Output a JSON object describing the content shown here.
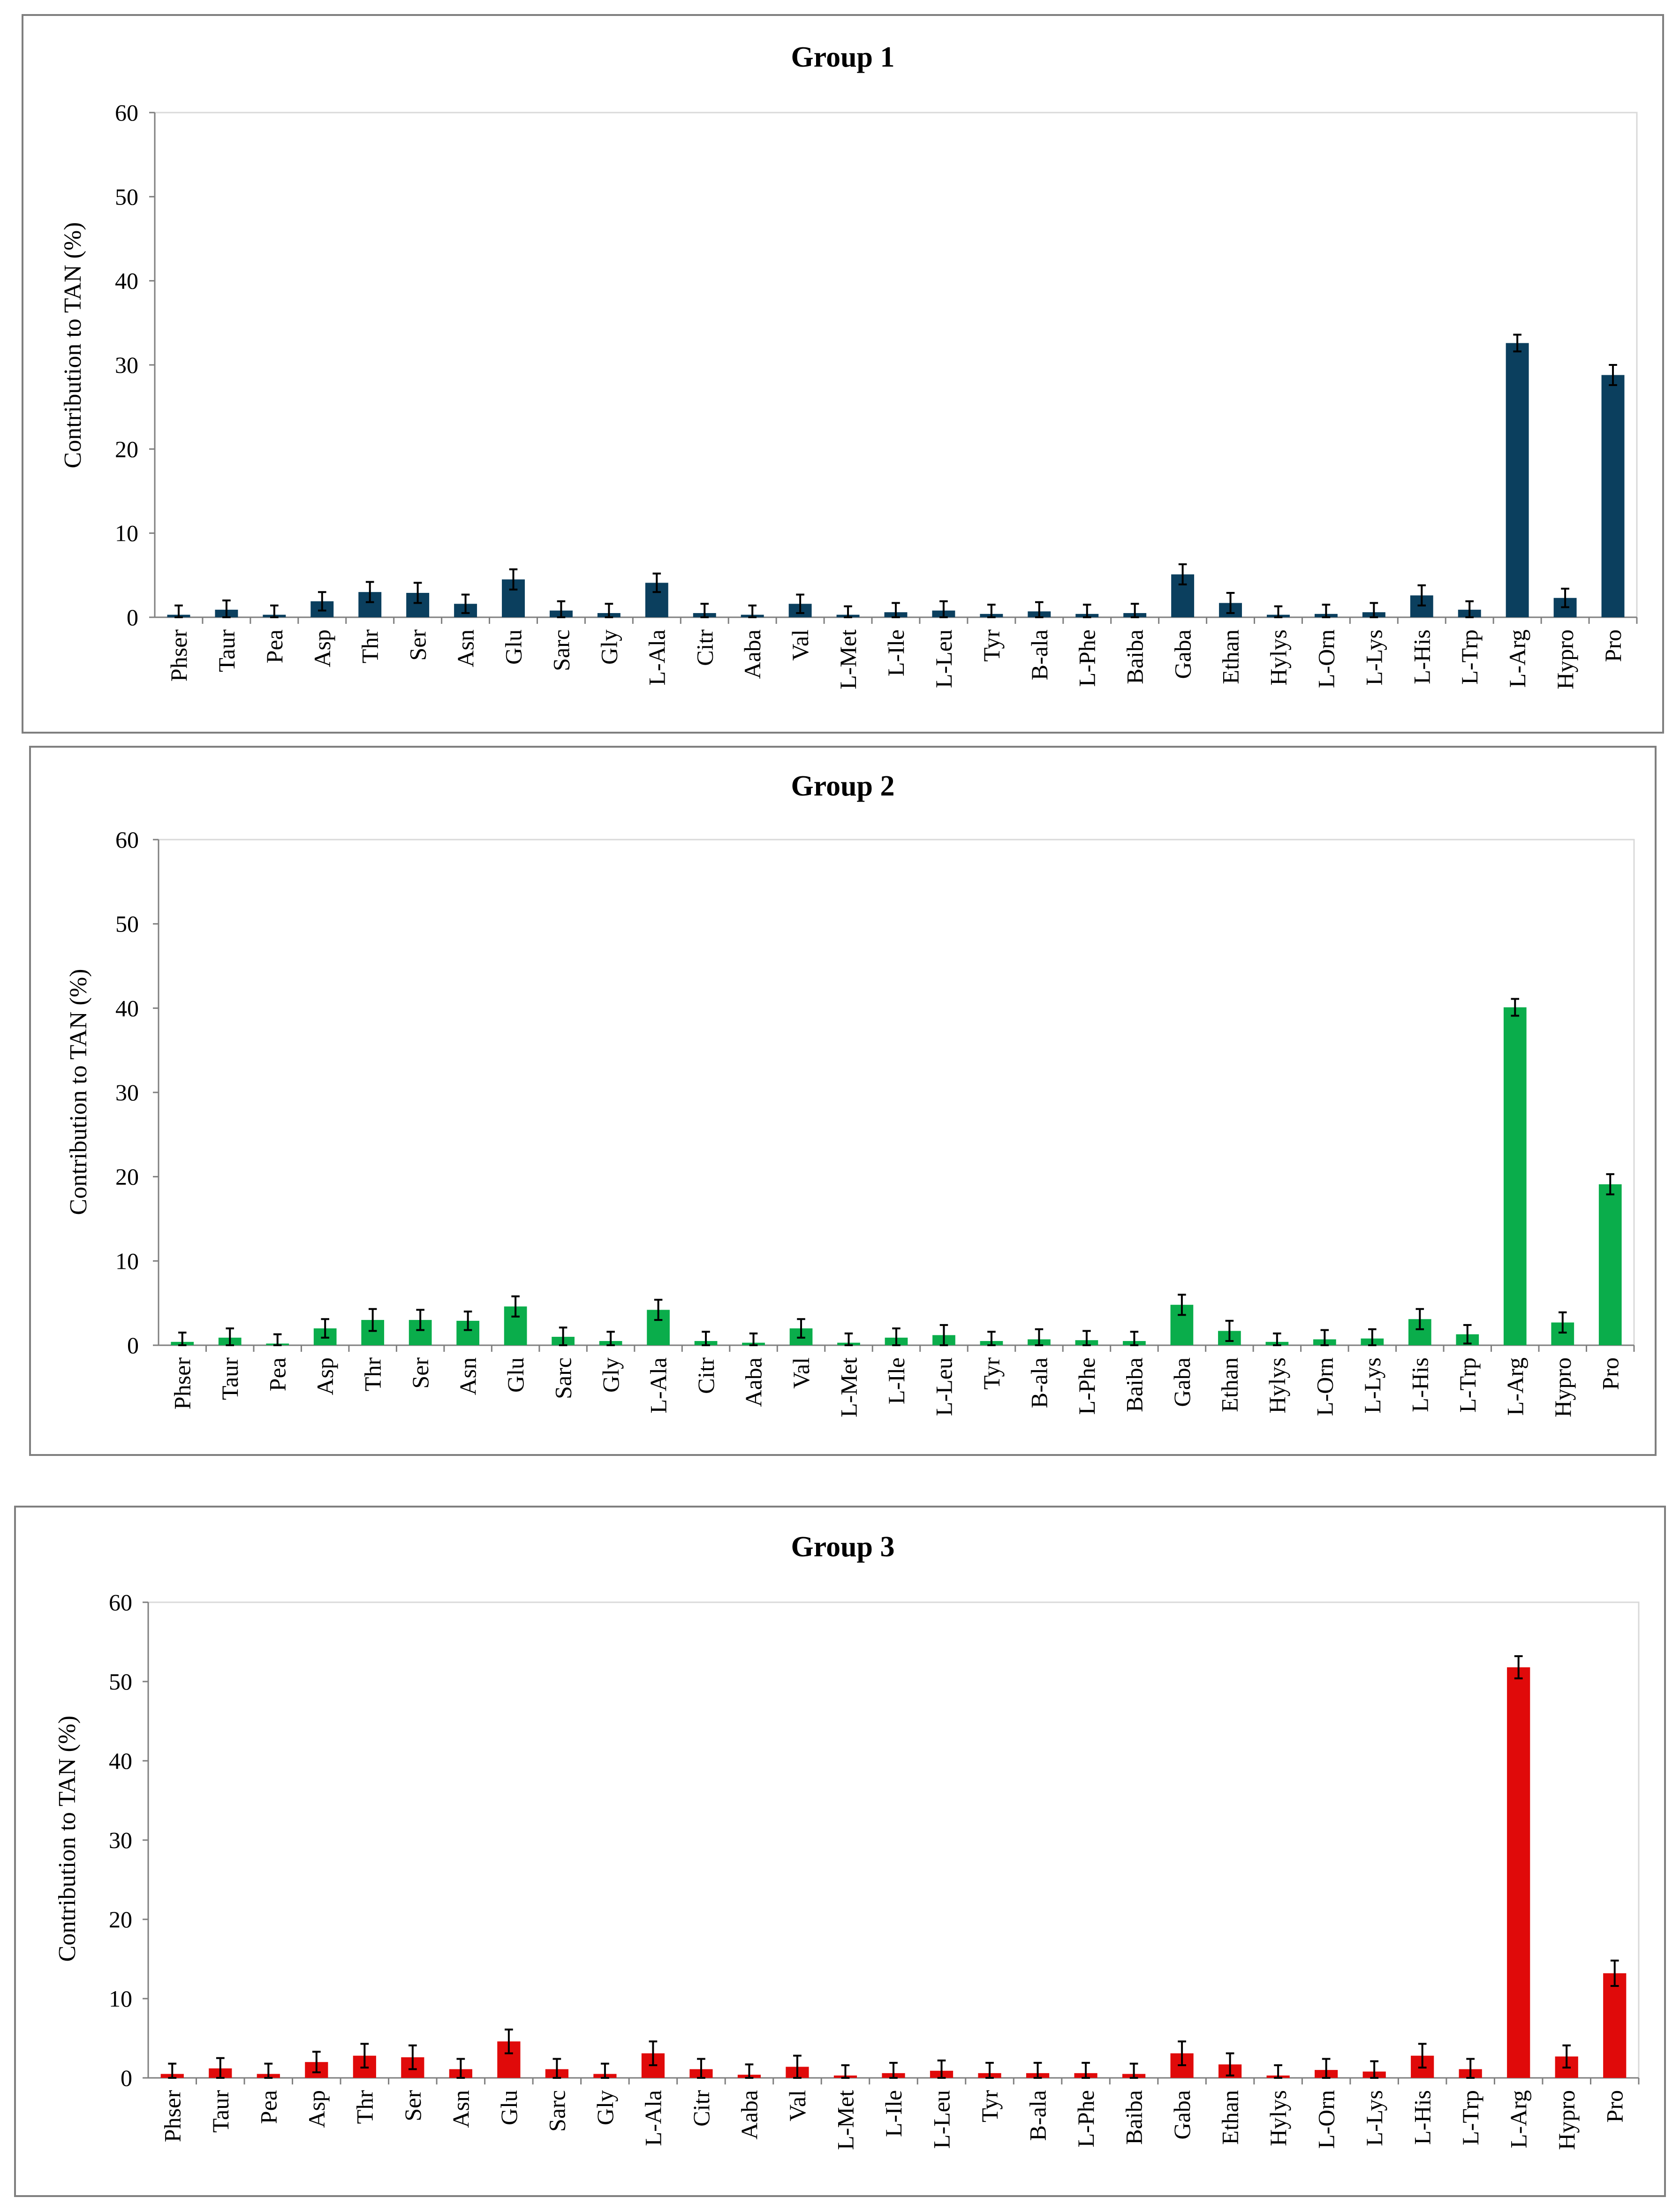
{
  "chart_data": [
    {
      "type": "bar",
      "title": "Group 1",
      "ylabel": "Contribution to TAN (%)",
      "xlabel": "",
      "ylim": [
        0,
        60
      ],
      "yticks": [
        0,
        10,
        20,
        30,
        40,
        50,
        60
      ],
      "grid": false,
      "color": "#0b3f5e",
      "categories": [
        "Phser",
        "Taur",
        "Pea",
        "Asp",
        "Thr",
        "Ser",
        "Asn",
        "Glu",
        "Sarc",
        "Gly",
        "L-Ala",
        "Citr",
        "Aaba",
        "Val",
        "L-Met",
        "L-Ile",
        "L-Leu",
        "Tyr",
        "B-ala",
        "L-Phe",
        "Baiba",
        "Gaba",
        "Ethan",
        "Hylys",
        "L-Orn",
        "L-Lys",
        "L-His",
        "L-Trp",
        "L-Arg",
        "Hypro",
        "Pro"
      ],
      "values": [
        0.3,
        0.9,
        0.3,
        1.9,
        3.0,
        2.9,
        1.6,
        4.5,
        0.8,
        0.5,
        4.1,
        0.5,
        0.3,
        1.6,
        0.3,
        0.6,
        0.8,
        0.4,
        0.7,
        0.4,
        0.5,
        5.1,
        1.7,
        0.3,
        0.4,
        0.6,
        2.6,
        0.9,
        32.6,
        2.3,
        28.8
      ],
      "errors": [
        1.1,
        1.1,
        1.1,
        1.1,
        1.2,
        1.2,
        1.1,
        1.2,
        1.1,
        1.1,
        1.1,
        1.1,
        1.1,
        1.1,
        1.0,
        1.1,
        1.1,
        1.1,
        1.1,
        1.1,
        1.1,
        1.2,
        1.2,
        1.0,
        1.1,
        1.1,
        1.2,
        1.0,
        1.0,
        1.1,
        1.2
      ]
    },
    {
      "type": "bar",
      "title": "Group 2",
      "ylabel": "Contribution to TAN (%)",
      "xlabel": "",
      "ylim": [
        0,
        60
      ],
      "yticks": [
        0,
        10,
        20,
        30,
        40,
        50,
        60
      ],
      "grid": false,
      "color": "#0aad4b",
      "categories": [
        "Phser",
        "Taur",
        "Pea",
        "Asp",
        "Thr",
        "Ser",
        "Asn",
        "Glu",
        "Sarc",
        "Gly",
        "L-Ala",
        "Citr",
        "Aaba",
        "Val",
        "L-Met",
        "L-Ile",
        "L-Leu",
        "Tyr",
        "B-ala",
        "L-Phe",
        "Baiba",
        "Gaba",
        "Ethan",
        "Hylys",
        "L-Orn",
        "L-Lys",
        "L-His",
        "L-Trp",
        "L-Arg",
        "Hypro",
        "Pro"
      ],
      "values": [
        0.4,
        0.9,
        0.2,
        2.0,
        3.0,
        3.0,
        2.9,
        4.6,
        1.0,
        0.5,
        4.2,
        0.5,
        0.3,
        2.0,
        0.3,
        0.9,
        1.2,
        0.5,
        0.7,
        0.6,
        0.5,
        4.8,
        1.7,
        0.4,
        0.7,
        0.8,
        3.1,
        1.3,
        40.1,
        2.7,
        19.1
      ],
      "errors": [
        1.1,
        1.1,
        1.1,
        1.1,
        1.3,
        1.2,
        1.1,
        1.2,
        1.1,
        1.1,
        1.2,
        1.1,
        1.1,
        1.1,
        1.1,
        1.1,
        1.2,
        1.1,
        1.2,
        1.1,
        1.1,
        1.2,
        1.2,
        1.0,
        1.1,
        1.1,
        1.2,
        1.1,
        1.0,
        1.2,
        1.2
      ]
    },
    {
      "type": "bar",
      "title": "Group 3",
      "ylabel": "Contribution to TAN (%)",
      "xlabel": "",
      "ylim": [
        0,
        60
      ],
      "yticks": [
        0,
        10,
        20,
        30,
        40,
        50,
        60
      ],
      "grid": false,
      "color": "#e00a0a",
      "categories": [
        "Phser",
        "Taur",
        "Pea",
        "Asp",
        "Thr",
        "Ser",
        "Asn",
        "Glu",
        "Sarc",
        "Gly",
        "L-Ala",
        "Citr",
        "Aaba",
        "Val",
        "L-Met",
        "L-Ile",
        "L-Leu",
        "Tyr",
        "B-ala",
        "L-Phe",
        "Baiba",
        "Gaba",
        "Ethan",
        "Hylys",
        "L-Orn",
        "L-Lys",
        "L-His",
        "L-Trp",
        "L-Arg",
        "Hypro",
        "Pro"
      ],
      "values": [
        0.5,
        1.2,
        0.5,
        2.0,
        2.8,
        2.6,
        1.1,
        4.6,
        1.1,
        0.5,
        3.1,
        1.1,
        0.4,
        1.4,
        0.3,
        0.6,
        0.9,
        0.6,
        0.6,
        0.6,
        0.5,
        3.1,
        1.7,
        0.3,
        1.0,
        0.8,
        2.8,
        1.1,
        51.8,
        2.7,
        13.2
      ],
      "errors": [
        1.3,
        1.3,
        1.3,
        1.3,
        1.5,
        1.5,
        1.3,
        1.5,
        1.3,
        1.3,
        1.5,
        1.3,
        1.3,
        1.4,
        1.3,
        1.3,
        1.3,
        1.3,
        1.3,
        1.3,
        1.3,
        1.5,
        1.4,
        1.3,
        1.4,
        1.3,
        1.5,
        1.3,
        1.4,
        1.4,
        1.6
      ]
    }
  ]
}
